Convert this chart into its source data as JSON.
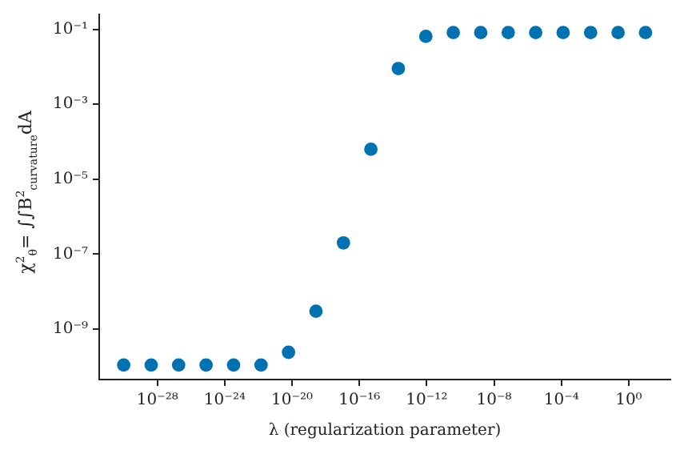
{
  "chart_data": {
    "type": "scatter",
    "xlabel": "λ (regularization parameter)",
    "ylabel": "χ$^{2}$$_{θ}$= ∫∫B$^{2}$$_{curvature}$dA",
    "log": "xy",
    "marker": "circle",
    "grid": false,
    "legend": false,
    "x": [
      1e-30,
      4.29e-29,
      1.83e-27,
      7.85e-26,
      3.36e-24,
      1.44e-22,
      6.16e-21,
      2.64e-19,
      1.13e-17,
      4.83e-16,
      2.07e-14,
      8.86e-13,
      3.79e-11,
      1.62e-09,
      6.95e-08,
      2.98e-06,
      0.000127,
      0.00546,
      0.234,
      10
    ],
    "series": [
      {
        "color": "#0072b2",
        "values": [
          1.1e-10,
          1.1e-10,
          1.1e-10,
          1.1e-10,
          1.1e-10,
          1.1e-10,
          2.4e-10,
          3e-09,
          2e-07,
          6.3e-05,
          0.009,
          0.065,
          0.082,
          0.082,
          0.082,
          0.082,
          0.082,
          0.082,
          0.082,
          0.082
        ]
      }
    ],
    "xlim": [
      3.5e-32,
      300
    ],
    "ylim": [
      4.5e-11,
      0.25
    ],
    "xticks": [
      {
        "value": 1e-28,
        "label": "10⁻²⁸"
      },
      {
        "value": 1e-24,
        "label": "10⁻²⁴"
      },
      {
        "value": 1e-20,
        "label": "10⁻²⁰"
      },
      {
        "value": 1e-16,
        "label": "10⁻¹⁶"
      },
      {
        "value": 1e-12,
        "label": "10⁻¹²"
      },
      {
        "value": 1e-08,
        "label": "10⁻⁸"
      },
      {
        "value": 0.0001,
        "label": "10⁻⁴"
      },
      {
        "value": 1,
        "label": "10⁰"
      }
    ],
    "yticks": [
      {
        "value": 1e-09,
        "label": "10⁻⁹"
      },
      {
        "value": 1e-07,
        "label": "10⁻⁷"
      },
      {
        "value": 1e-05,
        "label": "10⁻⁵"
      },
      {
        "value": 0.001,
        "label": "10⁻³"
      },
      {
        "value": 0.1,
        "label": "10⁻¹"
      }
    ]
  }
}
